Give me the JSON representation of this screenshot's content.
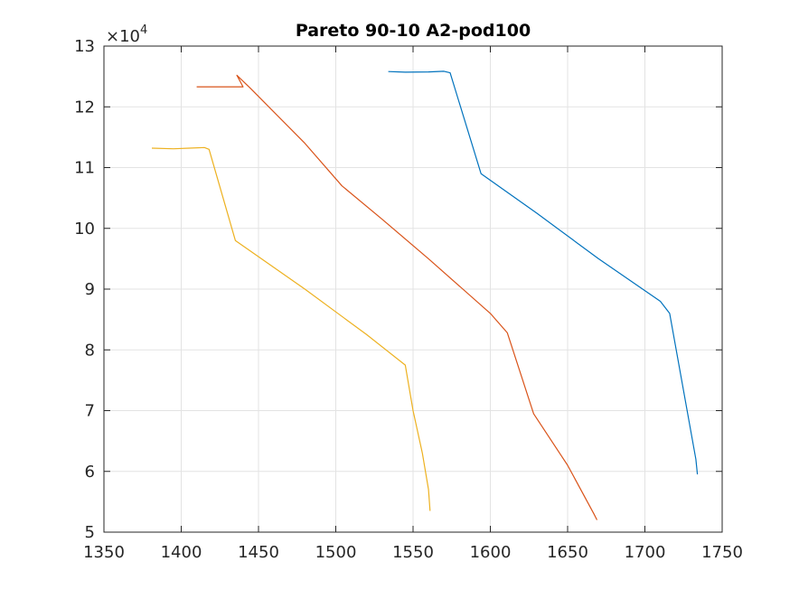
{
  "chart_data": {
    "type": "line",
    "title": "Pareto 90-10 A2-pod100",
    "xlabel": "",
    "ylabel": "",
    "xlim": [
      1350,
      1750
    ],
    "ylim": [
      50000,
      130000
    ],
    "x_ticks": [
      1350,
      1400,
      1450,
      1500,
      1550,
      1600,
      1650,
      1700,
      1750
    ],
    "y_ticks": [
      5,
      6,
      7,
      8,
      9,
      10,
      11,
      12,
      13
    ],
    "y_exponent_label": "×10",
    "y_exponent_power": "4",
    "grid": true,
    "series": [
      {
        "color": "#0072BD",
        "points": [
          [
            1534,
            125800
          ],
          [
            1545,
            125700
          ],
          [
            1560,
            125750
          ],
          [
            1570,
            125850
          ],
          [
            1574,
            125600
          ],
          [
            1594,
            109000
          ],
          [
            1630,
            102500
          ],
          [
            1670,
            95000
          ],
          [
            1710,
            88000
          ],
          [
            1716,
            86000
          ],
          [
            1733,
            62000
          ],
          [
            1734,
            59500
          ]
        ]
      },
      {
        "color": "#D95319",
        "points": [
          [
            1410,
            123300
          ],
          [
            1425,
            123300
          ],
          [
            1440,
            123300
          ],
          [
            1436,
            125200
          ],
          [
            1445,
            123000
          ],
          [
            1480,
            114000
          ],
          [
            1504,
            107000
          ],
          [
            1530,
            101500
          ],
          [
            1560,
            95000
          ],
          [
            1600,
            86000
          ],
          [
            1611,
            82800
          ],
          [
            1628,
            69500
          ],
          [
            1650,
            61000
          ],
          [
            1667,
            53000
          ],
          [
            1669,
            52000
          ]
        ]
      },
      {
        "color": "#EDB120",
        "points": [
          [
            1381,
            113200
          ],
          [
            1395,
            113100
          ],
          [
            1405,
            113200
          ],
          [
            1415,
            113300
          ],
          [
            1418,
            113000
          ],
          [
            1435,
            98000
          ],
          [
            1480,
            90000
          ],
          [
            1520,
            82500
          ],
          [
            1545,
            77500
          ],
          [
            1550,
            70000
          ],
          [
            1556,
            63000
          ],
          [
            1560,
            57000
          ],
          [
            1561,
            53500
          ]
        ]
      }
    ]
  }
}
